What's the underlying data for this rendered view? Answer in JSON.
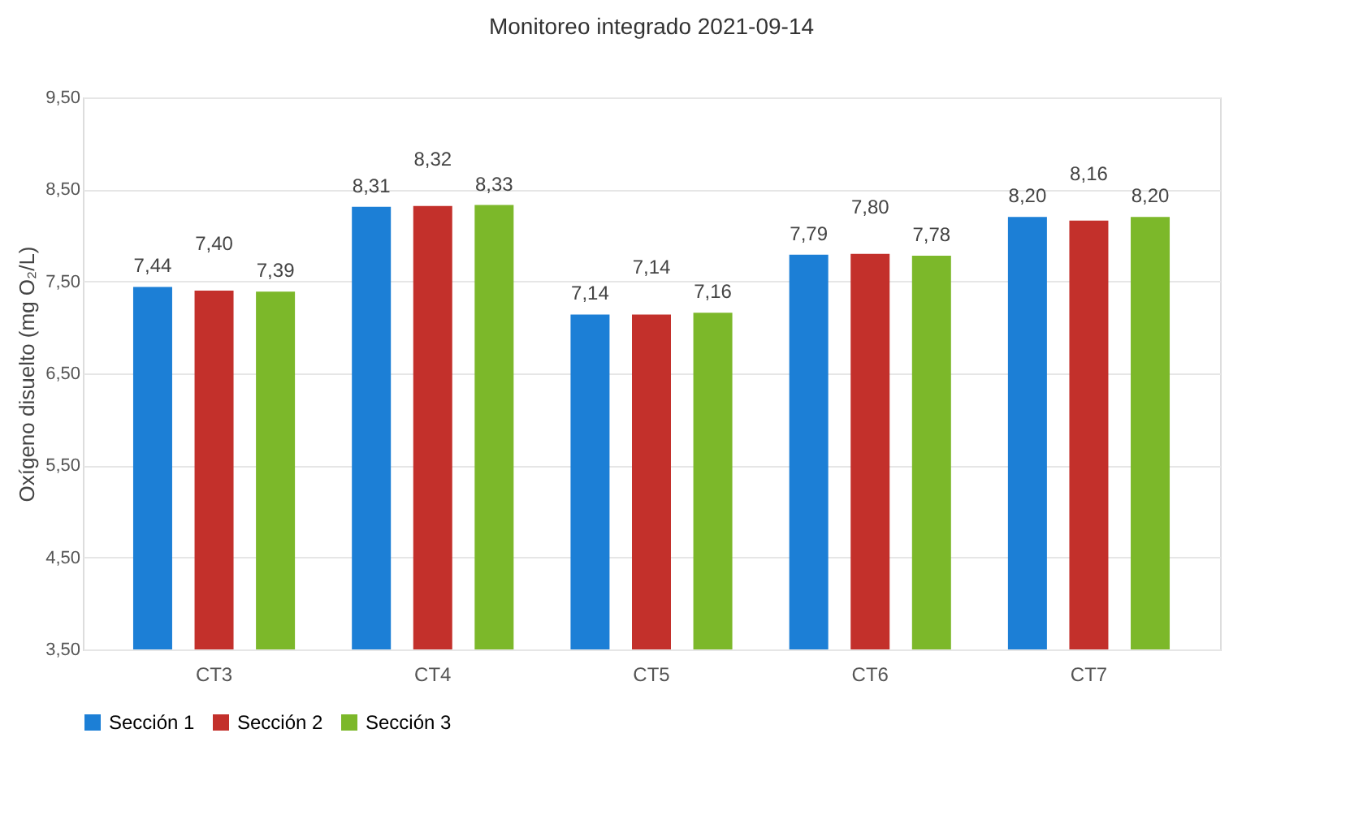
{
  "chart_data": {
    "type": "bar",
    "title": "Monitoreo integrado 2021-09-14",
    "ylabel": "Oxígeno disuelto (mg O₂/L)",
    "categories": [
      "CT3",
      "CT4",
      "CT5",
      "CT6",
      "CT7"
    ],
    "series": [
      {
        "name": "Sección 1",
        "color": "#1c7fd6",
        "values": [
          7.44,
          8.31,
          7.14,
          7.79,
          8.2
        ],
        "value_labels": [
          "7,44",
          "8,31",
          "7,14",
          "7,79",
          "8,20"
        ]
      },
      {
        "name": "Sección 2",
        "color": "#c3302b",
        "values": [
          7.4,
          8.32,
          7.14,
          7.8,
          8.16
        ],
        "value_labels": [
          "7,40",
          "8,32",
          "7,14",
          "7,80",
          "8,16"
        ]
      },
      {
        "name": "Sección 3",
        "color": "#7cb82a",
        "values": [
          7.39,
          8.33,
          7.16,
          7.78,
          8.2
        ],
        "value_labels": [
          "7,39",
          "8,33",
          "7,16",
          "7,78",
          "8,20"
        ]
      }
    ],
    "ylim": [
      3.5,
      9.5
    ],
    "yticks": [
      {
        "value": 3.5,
        "label": "3,50"
      },
      {
        "value": 4.5,
        "label": "4,50"
      },
      {
        "value": 5.5,
        "label": "5,50"
      },
      {
        "value": 6.5,
        "label": "6,50"
      },
      {
        "value": 7.5,
        "label": "7,50"
      },
      {
        "value": 8.5,
        "label": "8,50"
      },
      {
        "value": 9.5,
        "label": "9,50"
      }
    ],
    "grid": "y",
    "legend": "bottom"
  }
}
